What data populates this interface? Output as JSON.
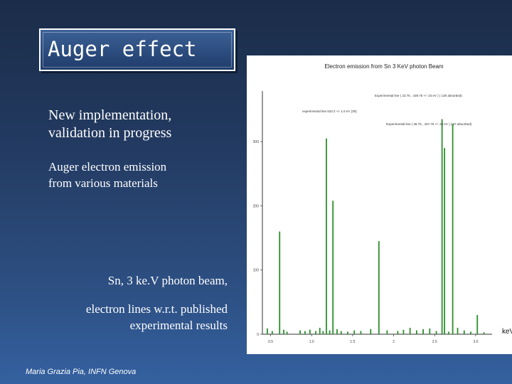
{
  "slide": {
    "title": "Auger effect",
    "bullet1": [
      "New implementation,",
      "validation in progress"
    ],
    "bullet2": [
      "Auger electron emission",
      "from various materials"
    ],
    "caption": [
      "Sn, 3 ke.V photon beam,",
      "electron lines w.r.t. published",
      "experimental results"
    ],
    "author": "Maria Grazia Pia, INFN Genova",
    "x_unit": "keV"
  },
  "chart_data": {
    "type": "bar",
    "title": "Electron emission from Sn 3 KeV photon Beam",
    "xlabel": "",
    "ylabel": "",
    "xlim": [
      0.4,
      3.2
    ],
    "ylim": [
      0,
      370
    ],
    "y_ticks": [
      0,
      100,
      200,
      300
    ],
    "x_ticks": [
      0.5,
      1,
      1.5,
      2,
      2.5,
      3
    ],
    "x_tick_labels": [
      "0.5",
      "1.0",
      "1.5",
      "2",
      "2.5",
      "3.0"
    ],
    "annotations": [
      "Experimental line ( 23.75 , 439.75 +/- 23 eV ) ( 130 absorbed)",
      "experimental line 533.2 +/- 1.5 eV (30)",
      "Experimental line ( 36.75 , 437.75 +/- 25 eV ) ( 47 absorbed)"
    ],
    "series": [
      {
        "x": [
          0.46,
          0.52,
          0.61,
          0.66,
          0.7,
          0.86,
          0.92,
          0.98,
          1.05,
          1.1,
          1.14,
          1.18,
          1.22,
          1.26,
          1.31,
          1.36,
          1.44,
          1.52,
          1.6,
          1.72,
          1.82,
          1.92,
          2.05,
          2.12,
          2.2,
          2.28,
          2.36,
          2.44,
          2.52,
          2.59,
          2.62,
          2.67,
          2.72,
          2.78,
          2.86,
          2.94,
          3.02,
          3.1
        ],
        "values": [
          9,
          5,
          160,
          7,
          4,
          6,
          5,
          7,
          5,
          10,
          5,
          305,
          6,
          208,
          8,
          5,
          4,
          6,
          5,
          8,
          145,
          6,
          5,
          7,
          10,
          6,
          8,
          9,
          5,
          335,
          290,
          4,
          328,
          10,
          6,
          4,
          30,
          3
        ]
      }
    ]
  },
  "colors": {
    "bar": "#2d8f2d",
    "axis": "#333333",
    "text": "#ffffff"
  }
}
